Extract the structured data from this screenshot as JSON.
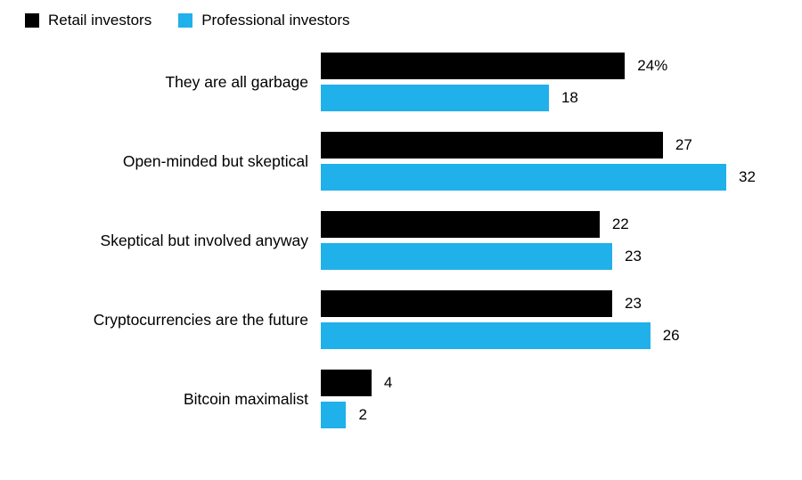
{
  "legend": {
    "items": [
      {
        "label": "Retail investors",
        "color": "#000000"
      },
      {
        "label": "Professional investors",
        "color": "#20b0ea"
      }
    ]
  },
  "chart_data": {
    "type": "bar",
    "orientation": "horizontal",
    "title": "",
    "categories": [
      "They are all garbage",
      "Open-minded but skeptical",
      "Skeptical but involved anyway",
      "Cryptocurrencies are the future",
      "Bitcoin maximalist"
    ],
    "series": [
      {
        "name": "Retail investors",
        "color": "#000000",
        "values": [
          24,
          27,
          22,
          23,
          4
        ],
        "value_labels": [
          "24%",
          "27",
          "22",
          "23",
          "4"
        ]
      },
      {
        "name": "Professional investors",
        "color": "#20b0ea",
        "values": [
          18,
          32,
          23,
          26,
          2
        ],
        "value_labels": [
          "18",
          "32",
          "23",
          "26",
          "2"
        ]
      }
    ],
    "xlim": [
      0,
      32
    ],
    "grid": false,
    "legend_position": "top-left"
  }
}
